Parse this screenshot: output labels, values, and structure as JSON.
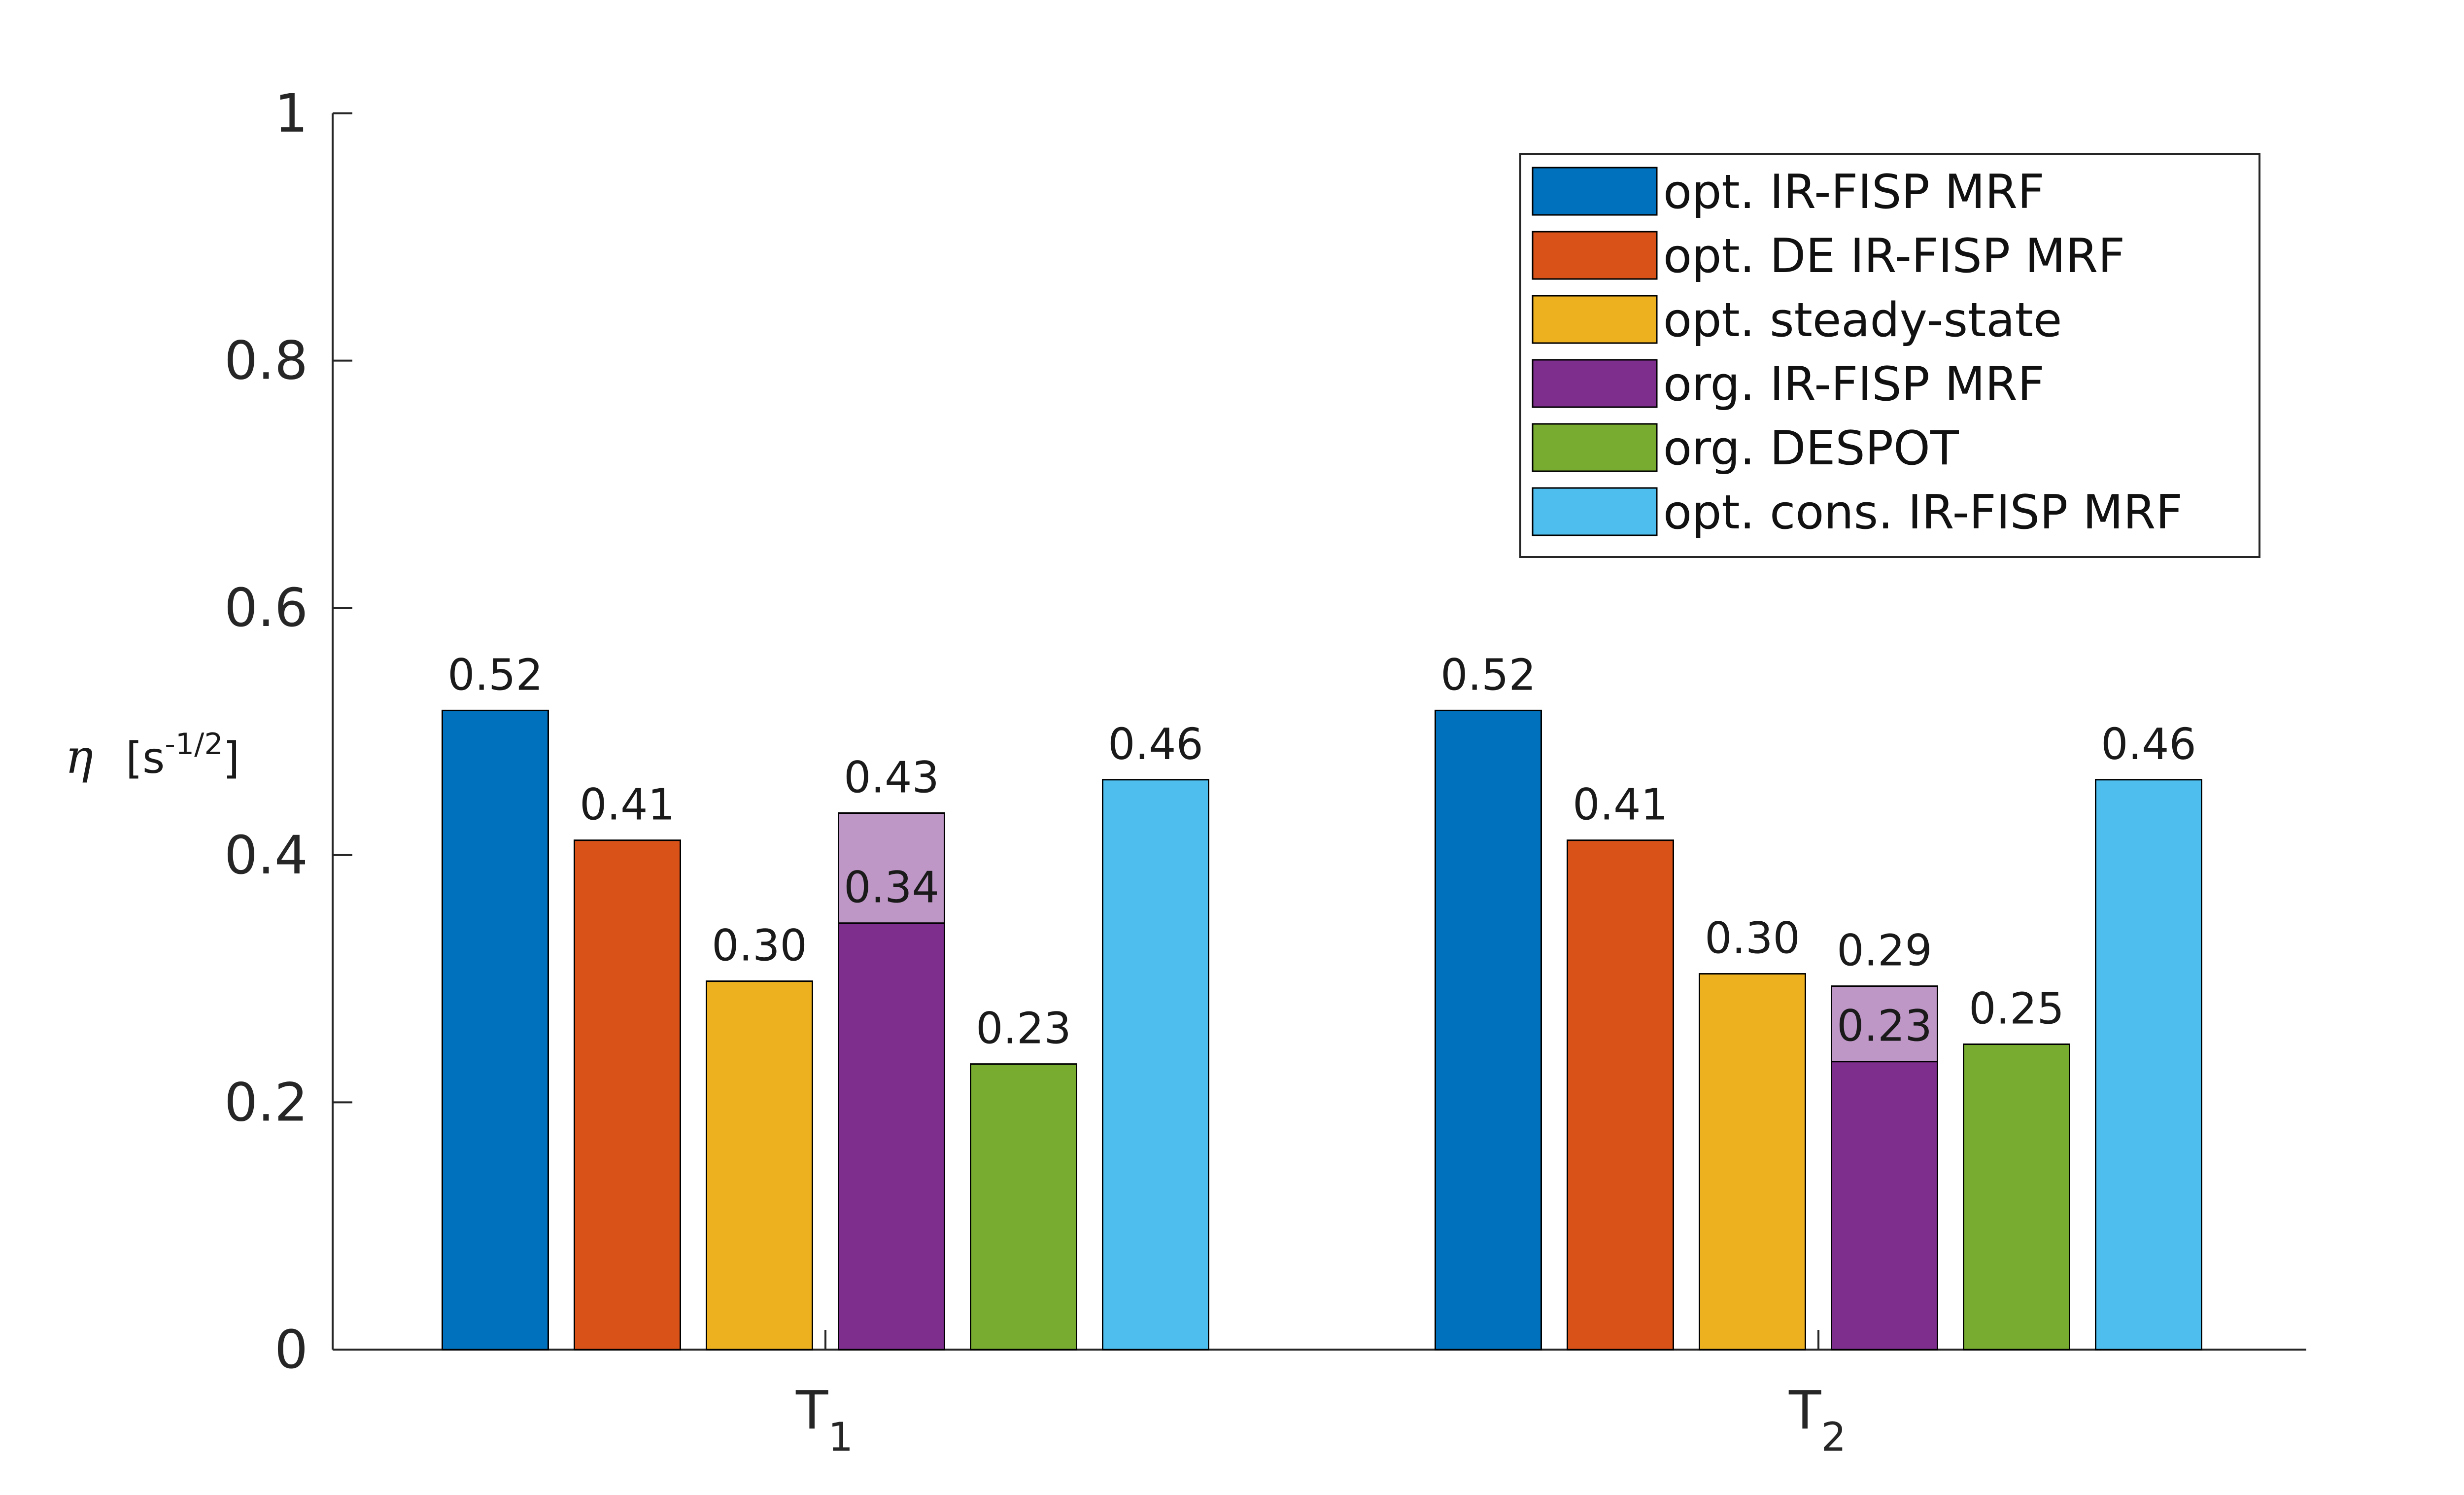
{
  "chart_data": {
    "type": "bar",
    "categories": [
      "T",
      "T"
    ],
    "category_subscripts": [
      "1",
      "2"
    ],
    "ylabel": {
      "symbol": "η",
      "unit_open": "[s",
      "unit_exponent": "-1/2",
      "unit_close": "]"
    },
    "ylim": [
      0,
      1
    ],
    "yticks": [
      0,
      0.2,
      0.4,
      0.6,
      0.8,
      1
    ],
    "ytick_labels": [
      "0",
      "0.2",
      "0.4",
      "0.6",
      "0.8",
      "1"
    ],
    "grid": false,
    "legend_position": "top-right",
    "series": [
      {
        "name": "opt. IR-FISP MRF",
        "color": "#0072BD",
        "values": [
          0.517,
          0.517
        ],
        "labels": [
          "0.52",
          "0.52"
        ]
      },
      {
        "name": "opt. DE IR-FISP MRF",
        "color": "#D95319",
        "values": [
          0.412,
          0.412
        ],
        "labels": [
          "0.41",
          "0.41"
        ]
      },
      {
        "name": "opt. steady-state",
        "color": "#EDB120",
        "values": [
          0.298,
          0.304
        ],
        "labels": [
          "0.30",
          "0.30"
        ]
      },
      {
        "name": "org. IR-FISP MRF",
        "color": "#7E2F8E",
        "values": [
          0.345,
          0.233
        ],
        "labels": [
          "0.34",
          "0.23"
        ],
        "overlay_values": [
          0.434,
          0.294
        ],
        "overlay_labels": [
          "0.43",
          "0.29"
        ],
        "overlay_color": "#BE97C6"
      },
      {
        "name": "org. DESPOT",
        "color": "#77AC30",
        "values": [
          0.231,
          0.247
        ],
        "labels": [
          "0.23",
          "0.25"
        ]
      },
      {
        "name": "opt. cons. IR-FISP MRF",
        "color": "#4DBEEE",
        "values": [
          0.461,
          0.461
        ],
        "labels": [
          "0.46",
          "0.46"
        ]
      }
    ]
  }
}
